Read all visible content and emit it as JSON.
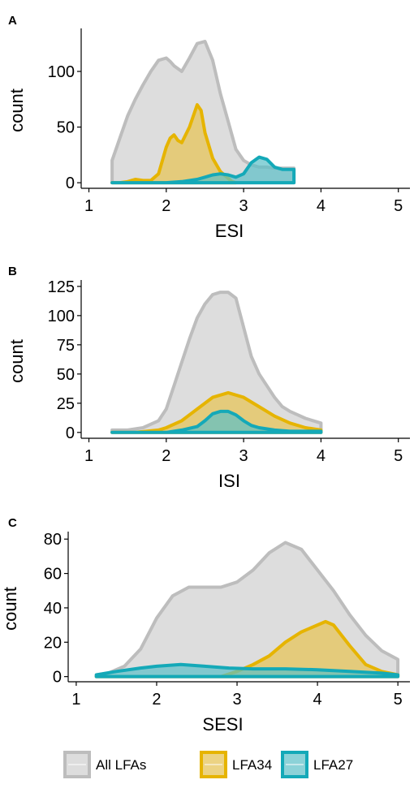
{
  "colors": {
    "all_fill": "#d9d9d9",
    "all_line": "#bdbdbd",
    "lfa34_fill": "#e6c45a",
    "lfa34_line": "#e6b400",
    "lfa27_fill": "#5bbfc8",
    "lfa27_line": "#14a9b8"
  },
  "legend": {
    "items": [
      {
        "label": "All LFAs",
        "key": "all"
      },
      {
        "label": "LFA34",
        "key": "lfa34"
      },
      {
        "label": "LFA27",
        "key": "lfa27"
      }
    ]
  },
  "chart_data": [
    {
      "type": "area",
      "panel": "A",
      "xlabel": "ESI",
      "ylabel": "count",
      "xlim": [
        0.9,
        5.15
      ],
      "ylim": [
        -5,
        135
      ],
      "xticks": [
        1,
        2,
        3,
        4,
        5
      ],
      "yticks": [
        0,
        50,
        100
      ],
      "series": [
        {
          "name": "All LFAs",
          "key": "all",
          "x": [
            1.3,
            1.4,
            1.5,
            1.6,
            1.7,
            1.8,
            1.9,
            2.0,
            2.05,
            2.1,
            2.2,
            2.3,
            2.4,
            2.5,
            2.6,
            2.7,
            2.8,
            2.9,
            3.0,
            3.1,
            3.2,
            3.3,
            3.4,
            3.5,
            3.6,
            3.65
          ],
          "y": [
            20,
            40,
            60,
            75,
            88,
            100,
            110,
            112,
            109,
            105,
            100,
            112,
            125,
            127,
            110,
            80,
            55,
            30,
            20,
            16,
            14,
            14,
            13,
            13,
            13,
            13
          ]
        },
        {
          "name": "LFA34",
          "key": "lfa34",
          "x": [
            1.3,
            1.4,
            1.5,
            1.6,
            1.7,
            1.8,
            1.9,
            2.0,
            2.05,
            2.1,
            2.15,
            2.2,
            2.3,
            2.4,
            2.45,
            2.5,
            2.6,
            2.7,
            2.8,
            2.85,
            2.9
          ],
          "y": [
            0,
            0,
            1,
            3,
            2,
            2,
            8,
            32,
            40,
            43,
            38,
            36,
            50,
            70,
            65,
            45,
            22,
            10,
            4,
            1,
            0
          ]
        },
        {
          "name": "LFA27",
          "key": "lfa27",
          "x": [
            1.3,
            1.5,
            1.8,
            2.0,
            2.2,
            2.4,
            2.5,
            2.6,
            2.7,
            2.8,
            2.9,
            3.0,
            3.1,
            3.2,
            3.3,
            3.4,
            3.5,
            3.6,
            3.65
          ],
          "y": [
            0,
            0,
            0,
            0,
            1,
            3,
            5,
            7,
            8,
            7,
            5,
            8,
            18,
            23,
            21,
            14,
            12,
            12,
            12
          ]
        }
      ]
    },
    {
      "type": "area",
      "panel": "B",
      "xlabel": "ISI",
      "ylabel": "count",
      "xlim": [
        0.9,
        5.15
      ],
      "ylim": [
        -5,
        127
      ],
      "xticks": [
        1,
        2,
        3,
        4,
        5
      ],
      "yticks": [
        0,
        25,
        50,
        75,
        100,
        125
      ],
      "series": [
        {
          "name": "All LFAs",
          "key": "all",
          "x": [
            1.3,
            1.5,
            1.7,
            1.9,
            2.0,
            2.1,
            2.2,
            2.3,
            2.4,
            2.5,
            2.6,
            2.7,
            2.8,
            2.9,
            3.0,
            3.1,
            3.2,
            3.3,
            3.4,
            3.5,
            3.6,
            3.7,
            3.8,
            3.9,
            4.0
          ],
          "y": [
            2,
            2,
            4,
            10,
            20,
            40,
            60,
            80,
            98,
            110,
            118,
            120,
            120,
            115,
            90,
            65,
            50,
            40,
            30,
            22,
            18,
            15,
            12,
            10,
            8
          ]
        },
        {
          "name": "LFA34",
          "key": "lfa34",
          "x": [
            1.3,
            1.6,
            1.9,
            2.0,
            2.2,
            2.4,
            2.6,
            2.8,
            3.0,
            3.2,
            3.4,
            3.6,
            3.8,
            4.0
          ],
          "y": [
            0,
            0,
            2,
            4,
            10,
            20,
            30,
            34,
            30,
            22,
            14,
            8,
            4,
            2
          ]
        },
        {
          "name": "LFA27",
          "key": "lfa27",
          "x": [
            1.3,
            1.8,
            2.0,
            2.2,
            2.4,
            2.5,
            2.6,
            2.7,
            2.8,
            2.9,
            3.0,
            3.1,
            3.2,
            3.4,
            3.6,
            3.8,
            4.0
          ],
          "y": [
            0,
            0,
            0,
            2,
            5,
            10,
            16,
            18,
            18,
            15,
            10,
            6,
            4,
            2,
            1,
            1,
            1
          ]
        }
      ]
    },
    {
      "type": "area",
      "panel": "C",
      "xlabel": "SESI",
      "ylabel": "count",
      "xlim": [
        0.9,
        5.15
      ],
      "ylim": [
        -3,
        82
      ],
      "xticks": [
        1,
        2,
        3,
        4,
        5
      ],
      "yticks": [
        0,
        20,
        40,
        60,
        80
      ],
      "series": [
        {
          "name": "All LFAs",
          "key": "all",
          "x": [
            1.25,
            1.4,
            1.6,
            1.8,
            2.0,
            2.2,
            2.4,
            2.6,
            2.8,
            3.0,
            3.2,
            3.4,
            3.6,
            3.8,
            4.0,
            4.2,
            4.4,
            4.6,
            4.8,
            5.0
          ],
          "y": [
            1,
            2,
            6,
            16,
            34,
            47,
            52,
            52,
            52,
            55,
            62,
            72,
            78,
            74,
            62,
            50,
            36,
            24,
            15,
            10
          ]
        },
        {
          "name": "LFA34",
          "key": "lfa34",
          "x": [
            1.25,
            2.0,
            2.8,
            3.0,
            3.2,
            3.4,
            3.6,
            3.8,
            4.0,
            4.1,
            4.2,
            4.4,
            4.6,
            4.8,
            5.0
          ],
          "y": [
            0,
            0,
            0,
            3,
            7,
            12,
            20,
            26,
            30,
            32,
            30,
            18,
            7,
            3,
            1
          ]
        },
        {
          "name": "LFA27",
          "key": "lfa27",
          "x": [
            1.25,
            1.5,
            1.8,
            2.0,
            2.3,
            2.6,
            2.9,
            3.2,
            3.6,
            4.0,
            4.4,
            4.8,
            5.0
          ],
          "y": [
            1,
            3,
            5,
            6,
            7,
            6,
            5,
            4.5,
            4.5,
            4,
            3,
            2,
            1
          ]
        }
      ]
    }
  ]
}
